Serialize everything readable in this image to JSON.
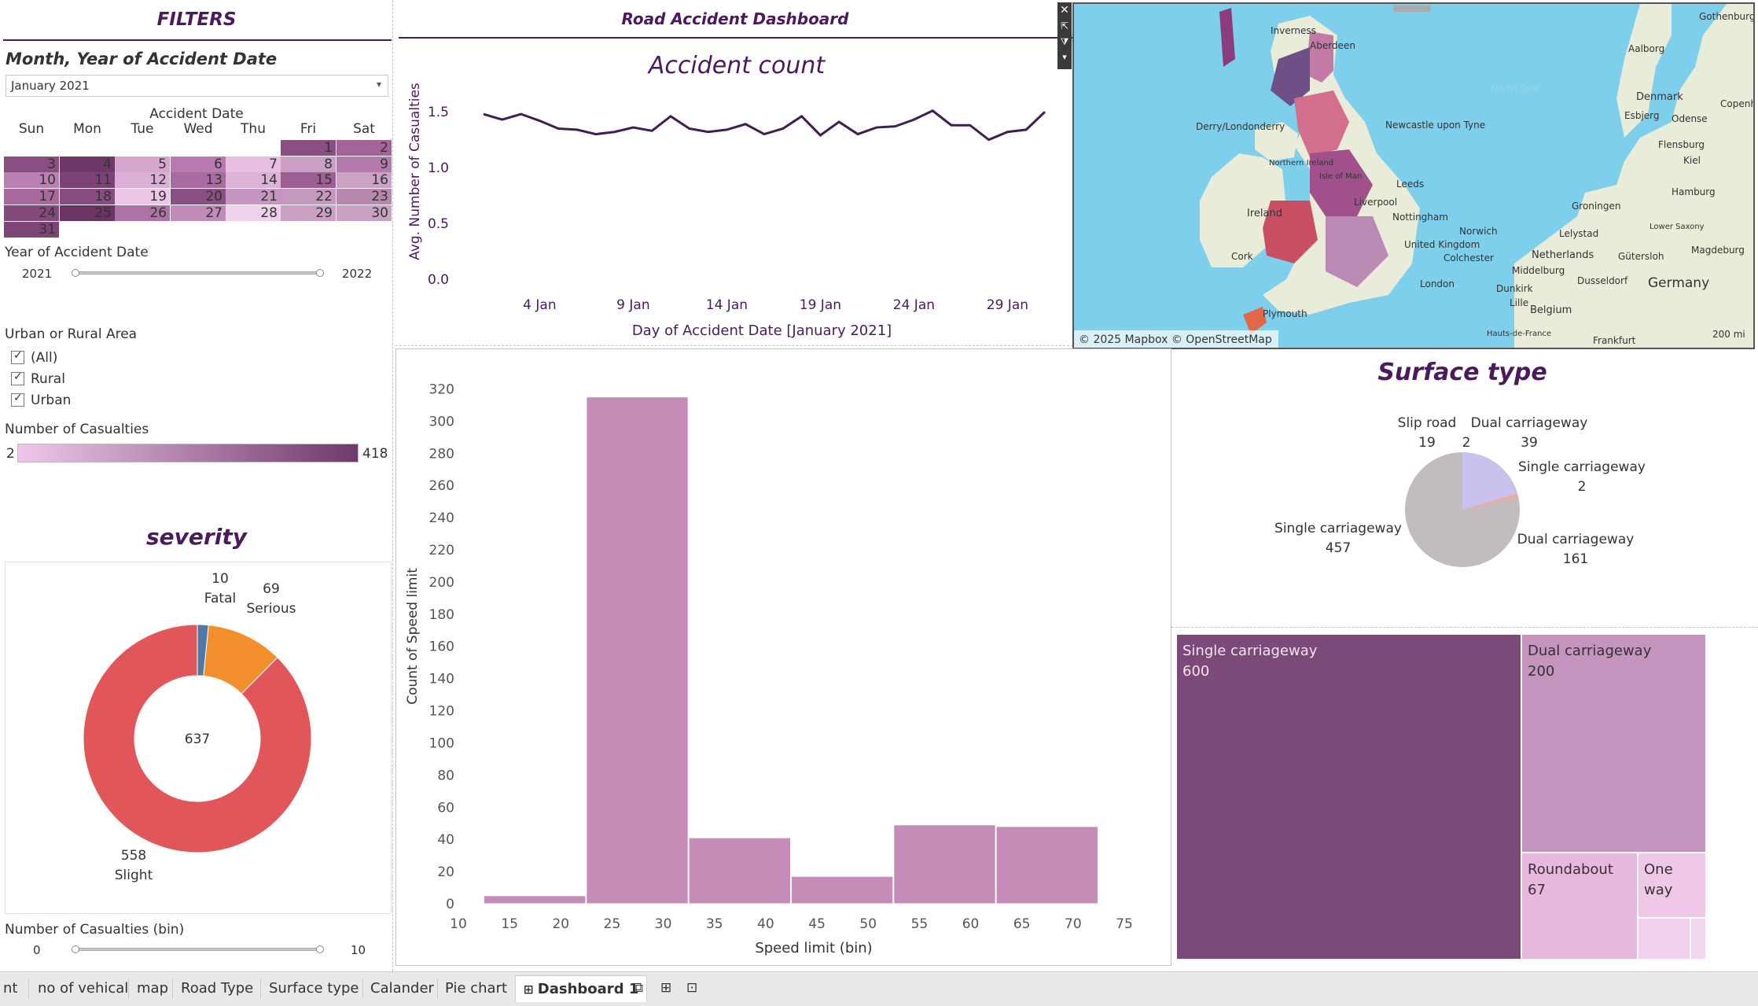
{
  "filters": {
    "title": "FILTERS",
    "month_year_label": "Month, Year of Accident Date",
    "month_year_value": "January 2021",
    "calendar_title": "Accident Date",
    "weekdays": [
      "Sun",
      "Mon",
      "Tue",
      "Wed",
      "Thu",
      "Fri",
      "Sat"
    ],
    "weeks": [
      [
        "",
        "",
        "",
        "",
        "",
        "1",
        "2"
      ],
      [
        "3",
        "4",
        "5",
        "6",
        "7",
        "8",
        "9"
      ],
      [
        "10",
        "11",
        "12",
        "13",
        "14",
        "15",
        "16"
      ],
      [
        "17",
        "18",
        "19",
        "20",
        "21",
        "22",
        "23"
      ],
      [
        "24",
        "25",
        "26",
        "27",
        "28",
        "29",
        "30"
      ],
      [
        "31",
        "",
        "",
        "",
        "",
        "",
        ""
      ]
    ],
    "week_colors": [
      [
        "",
        "",
        "",
        "",
        "",
        "#8a4f82",
        "#a4649a"
      ],
      [
        "#8a4f82",
        "#6e3868",
        "#d6a6cf",
        "#b87ab0",
        "#e7bfe2",
        "#caa0c6",
        "#b47caa"
      ],
      [
        "#ba80b3",
        "#7a4275",
        "#dcb0d6",
        "#a86ca0",
        "#dcb3d6",
        "#9e5f95",
        "#caa2c3"
      ],
      [
        "#a8699f",
        "#884d80",
        "#ecc6e6",
        "#8a4f82",
        "#c796c0",
        "#c598bf",
        "#b787ae"
      ],
      [
        "#844a7c",
        "#6a3565",
        "#ae73a6",
        "#c08bb9",
        "#efd1eb",
        "#caa0c3",
        "#caa0c3"
      ],
      [
        "#7d4576",
        "",
        "",
        "",
        "",
        "",
        ""
      ]
    ],
    "year_label": "Year of Accident Date",
    "year_min": "2021",
    "year_max": "2022",
    "area_label": "Urban or Rural Area",
    "area_options": [
      "(All)",
      "Rural",
      "Urban"
    ],
    "casualties_label": "Number of Casualties",
    "casualties_min": "2",
    "casualties_max": "418",
    "casualties_bin_label": "Number of Casualties (bin)",
    "bin_min": "0",
    "bin_max": "10"
  },
  "dashboard": {
    "title": "Road Accident Dashboard"
  },
  "line_chart": {
    "title": "Accident count",
    "ylabel": "Avg. Number of Casualties",
    "xlabel": "Day of Accident Date [January 2021]",
    "yticks": [
      "0.0",
      "0.5",
      "1.0",
      "1.5"
    ],
    "xticks": [
      "4 Jan",
      "9 Jan",
      "14 Jan",
      "19 Jan",
      "24 Jan",
      "29 Jan"
    ]
  },
  "map": {
    "attribution": "© 2025 Mapbox © OpenStreetMap",
    "scale": "200 mi",
    "places": [
      "Inverness",
      "Aberdeen",
      "North Sea",
      "Derry/Londonderry",
      "Northern Ireland",
      "Isle of Man",
      "Newcastle upon Tyne",
      "Leeds",
      "Liverpool",
      "Nottingham",
      "United Kingdom",
      "Norwich",
      "Colchester",
      "London",
      "Plymouth",
      "Ireland",
      "Cork",
      "Denmark",
      "Aalborg",
      "Esbjerg",
      "Odense",
      "Flensburg",
      "Kiel",
      "Hamburg",
      "Groningen",
      "Lelystad",
      "Netherlands",
      "Lower Saxony",
      "Magdeburg",
      "Germany",
      "Dusseldorf",
      "Dunkirk",
      "Lille",
      "Belgium",
      "Middelburg",
      "Gütersloh",
      "Gothenburg",
      "Copenhagen",
      "Hauts-de-France",
      "Frankfurt"
    ]
  },
  "severity": {
    "title": "severity",
    "total": "637",
    "slices": [
      {
        "label": "Fatal",
        "value": 10,
        "color": "#4e79a7"
      },
      {
        "label": "Serious",
        "value": 69,
        "color": "#f28e2b"
      },
      {
        "label": "Slight",
        "value": 558,
        "color": "#e15759"
      }
    ]
  },
  "surface": {
    "title": "Surface type",
    "pie_labels": [
      {
        "name": "Slip road",
        "value": "19"
      },
      {
        "name": "",
        "value": "2"
      },
      {
        "name": "Dual carriageway",
        "value": "39"
      },
      {
        "name": "Single carriageway",
        "value": "2"
      },
      {
        "name": "Single carriageway",
        "value": "457"
      },
      {
        "name": "Dual carriageway",
        "value": "161"
      }
    ]
  },
  "treemap": {
    "items": [
      {
        "name": "Single carriageway",
        "value": "600",
        "color": "#7b4a78"
      },
      {
        "name": "Dual carriageway",
        "value": "200",
        "color": "#c594bf"
      },
      {
        "name": "Roundabout",
        "value": "67",
        "color": "#e8b8df"
      },
      {
        "name": "One way",
        "value": "",
        "color": "#efc8e8"
      }
    ]
  },
  "histogram": {
    "ylabel": "Count of Speed limit",
    "xlabel": "Speed limit (bin)",
    "yticks": [
      "0",
      "20",
      "40",
      "60",
      "80",
      "100",
      "120",
      "140",
      "160",
      "180",
      "200",
      "220",
      "240",
      "260",
      "280",
      "300",
      "320"
    ],
    "xticks": [
      "10",
      "15",
      "20",
      "25",
      "30",
      "35",
      "40",
      "45",
      "50",
      "55",
      "60",
      "65",
      "70",
      "75"
    ]
  },
  "tabs": [
    "nt",
    "no of vehical",
    "map",
    "Road Type",
    "Surface type",
    "Calander",
    "Pie chart",
    "Dashboard 1"
  ],
  "chart_data": [
    {
      "type": "line",
      "title": "Accident count",
      "xlabel": "Day of Accident Date [January 2021]",
      "ylabel": "Avg. Number of Casualties",
      "x": [
        1,
        2,
        3,
        4,
        5,
        6,
        7,
        8,
        9,
        10,
        11,
        12,
        13,
        14,
        15,
        16,
        17,
        18,
        19,
        20,
        21,
        22,
        23,
        24,
        25,
        26,
        27,
        28,
        29,
        30,
        31
      ],
      "values": [
        1.48,
        1.43,
        1.48,
        1.42,
        1.35,
        1.34,
        1.3,
        1.32,
        1.36,
        1.33,
        1.46,
        1.35,
        1.32,
        1.34,
        1.39,
        1.3,
        1.35,
        1.46,
        1.29,
        1.41,
        1.3,
        1.36,
        1.37,
        1.43,
        1.51,
        1.38,
        1.38,
        1.25,
        1.32,
        1.34,
        1.5
      ],
      "ylim": [
        0,
        1.6
      ]
    },
    {
      "type": "pie",
      "title": "severity",
      "categories": [
        "Fatal",
        "Serious",
        "Slight"
      ],
      "values": [
        10,
        69,
        558
      ]
    },
    {
      "type": "bar",
      "xlabel": "Speed limit (bin)",
      "ylabel": "Count of Speed limit",
      "categories": [
        "10",
        "20",
        "30",
        "40",
        "50",
        "60",
        "70"
      ],
      "values": [
        5,
        315,
        41,
        17,
        49,
        48,
        0
      ],
      "ylim": [
        0,
        330
      ]
    },
    {
      "type": "pie",
      "title": "Surface type",
      "categories": [
        "Single carriageway",
        "Dual carriageway",
        "Slip road",
        "Dual carriageway",
        "Single carriageway",
        "Slip road"
      ],
      "values": [
        457,
        161,
        19,
        39,
        2,
        2
      ]
    }
  ]
}
